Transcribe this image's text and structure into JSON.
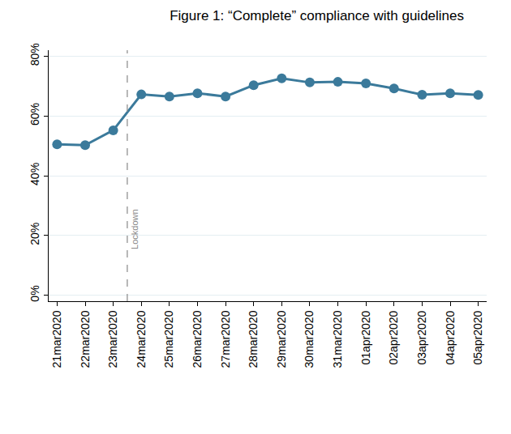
{
  "chart_data": {
    "type": "line",
    "title": "Figure 1: “Complete” compliance with guidelines",
    "categories": [
      "21mar2020",
      "22mar2020",
      "23mar2020",
      "24mar2020",
      "25mar2020",
      "26mar2020",
      "27mar2020",
      "28mar2020",
      "29mar2020",
      "30mar2020",
      "31mar2020",
      "01apr2020",
      "02apr2020",
      "03apr2020",
      "04apr2020",
      "05apr2020"
    ],
    "values": [
      50.5,
      50.2,
      55.2,
      67.2,
      66.5,
      67.6,
      66.5,
      70.3,
      72.6,
      71.2,
      71.4,
      70.9,
      69.2,
      67.1,
      67.6,
      67.0
    ],
    "color": "#3b7a9b",
    "marker": "circle",
    "ylim": [
      -2,
      82
    ],
    "yticks": [
      {
        "value": 0,
        "label": "0%"
      },
      {
        "value": 20,
        "label": "20%"
      },
      {
        "value": 40,
        "label": "40%"
      },
      {
        "value": 60,
        "label": "60%"
      },
      {
        "value": 80,
        "label": "80%"
      }
    ],
    "grid": true,
    "annotations": [
      {
        "text": "Lockdown",
        "x": 2.5,
        "line_style": "dashed"
      }
    ]
  }
}
